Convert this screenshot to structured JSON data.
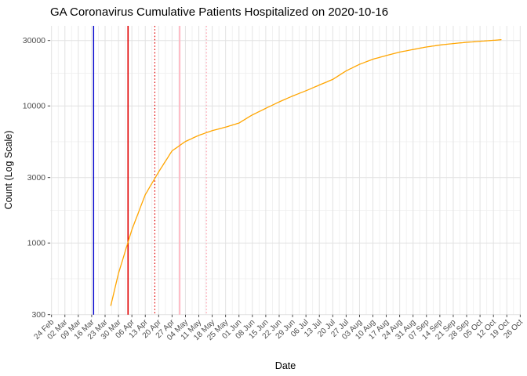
{
  "title": "GA Coronavirus Cumulative Patients Hospitalized on 2020-10-16",
  "colors": {
    "background": "#FFFFFF",
    "grid_major": "#E2E2E2",
    "grid_minor": "#F0F0F0",
    "tick_mark": "#333333",
    "axis_text": "#4D4D4D",
    "title_text": "#000000",
    "series_line": "#FFA500",
    "vline_blue": "#0000CD",
    "vline_red": "#E00000",
    "vline_pink": "#FFB6C1"
  },
  "chart_data": {
    "type": "line",
    "title": "GA Coronavirus Cumulative Patients Hospitalized on 2020-10-16",
    "xlabel": "Date",
    "ylabel": "Count (Log Scale)",
    "y_scale": "log10",
    "ylim": [
      300,
      38000
    ],
    "x_range": [
      "2020-02-24",
      "2020-10-26"
    ],
    "grid": "major+minor",
    "legend": "none",
    "x_tick_labels": [
      "24 Feb",
      "02 Mar",
      "09 Mar",
      "16 Mar",
      "23 Mar",
      "30 Mar",
      "06 Apr",
      "13 Apr",
      "20 Apr",
      "27 Apr",
      "04 May",
      "11 May",
      "18 May",
      "25 May",
      "01 Jun",
      "08 Jun",
      "15 Jun",
      "22 Jun",
      "29 Jun",
      "06 Jul",
      "13 Jul",
      "20 Jul",
      "27 Jul",
      "03 Aug",
      "10 Aug",
      "17 Aug",
      "24 Aug",
      "31 Aug",
      "07 Sep",
      "14 Sep",
      "21 Sep",
      "28 Sep",
      "05 Oct",
      "12 Oct",
      "19 Oct",
      "26 Oct"
    ],
    "y_tick_labels": [
      "300",
      "1000",
      "3000",
      "10000",
      "30000"
    ],
    "y_tick_values": [
      300,
      1000,
      3000,
      10000,
      30000
    ],
    "y_minor_values": [
      548,
      1732,
      5477,
      17321
    ],
    "series": [
      {
        "name": "Cumulative Patients Hospitalized",
        "color": "#FFA500",
        "points": [
          {
            "date": "2020-03-26",
            "day": 31,
            "value": 350
          },
          {
            "date": "2020-03-30",
            "day": 35,
            "value": 600
          },
          {
            "date": "2020-04-06",
            "day": 42,
            "value": 1250
          },
          {
            "date": "2020-04-13",
            "day": 49,
            "value": 2250
          },
          {
            "date": "2020-04-20",
            "day": 56,
            "value": 3300
          },
          {
            "date": "2020-04-27",
            "day": 63,
            "value": 4700
          },
          {
            "date": "2020-05-04",
            "day": 70,
            "value": 5500
          },
          {
            "date": "2020-05-11",
            "day": 77,
            "value": 6100
          },
          {
            "date": "2020-05-18",
            "day": 84,
            "value": 6600
          },
          {
            "date": "2020-05-25",
            "day": 91,
            "value": 7000
          },
          {
            "date": "2020-06-01",
            "day": 98,
            "value": 7500
          },
          {
            "date": "2020-06-08",
            "day": 105,
            "value": 8600
          },
          {
            "date": "2020-06-15",
            "day": 112,
            "value": 9600
          },
          {
            "date": "2020-06-22",
            "day": 119,
            "value": 10700
          },
          {
            "date": "2020-06-29",
            "day": 126,
            "value": 11800
          },
          {
            "date": "2020-07-06",
            "day": 133,
            "value": 12900
          },
          {
            "date": "2020-07-13",
            "day": 140,
            "value": 14200
          },
          {
            "date": "2020-07-20",
            "day": 147,
            "value": 15600
          },
          {
            "date": "2020-07-27",
            "day": 154,
            "value": 18000
          },
          {
            "date": "2020-08-03",
            "day": 161,
            "value": 20100
          },
          {
            "date": "2020-08-10",
            "day": 168,
            "value": 21900
          },
          {
            "date": "2020-08-17",
            "day": 175,
            "value": 23300
          },
          {
            "date": "2020-08-24",
            "day": 182,
            "value": 24700
          },
          {
            "date": "2020-08-31",
            "day": 189,
            "value": 25800
          },
          {
            "date": "2020-09-07",
            "day": 196,
            "value": 26900
          },
          {
            "date": "2020-09-14",
            "day": 203,
            "value": 27800
          },
          {
            "date": "2020-09-21",
            "day": 210,
            "value": 28500
          },
          {
            "date": "2020-09-28",
            "day": 217,
            "value": 29100
          },
          {
            "date": "2020-10-05",
            "day": 224,
            "value": 29600
          },
          {
            "date": "2020-10-12",
            "day": 231,
            "value": 30100
          },
          {
            "date": "2020-10-16",
            "day": 235,
            "value": 30400
          }
        ]
      }
    ],
    "vlines": [
      {
        "date": "2020-03-17",
        "day": 22,
        "color": "#0000CD",
        "style": "solid",
        "width": 1.4,
        "name": "blue-event-line"
      },
      {
        "date": "2020-04-04",
        "day": 40,
        "color": "#E00000",
        "style": "solid",
        "width": 1.6,
        "name": "red-event-line"
      },
      {
        "date": "2020-04-18",
        "day": 54,
        "color": "#E00000",
        "style": "dotted",
        "width": 1.2,
        "name": "red-event-line-dotted"
      },
      {
        "date": "2020-05-01",
        "day": 67,
        "color": "#FFB6C1",
        "style": "solid",
        "width": 1.9,
        "name": "pink-event-line"
      },
      {
        "date": "2020-05-15",
        "day": 81,
        "color": "#FFB6C1",
        "style": "dotted",
        "width": 1.5,
        "name": "pink-event-line-dotted"
      }
    ]
  }
}
